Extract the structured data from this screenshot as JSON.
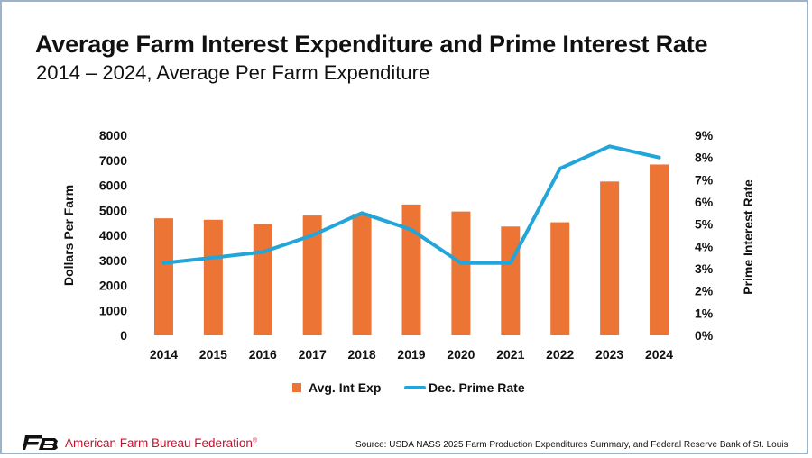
{
  "header": {
    "title": "Average Farm Interest Expenditure and Prime Interest Rate",
    "subtitle": "2014 – 2024, Average Per Farm Expenditure"
  },
  "footer": {
    "org_name": "American Farm Bureau Federation",
    "org_mark": "®",
    "logo_icon": "afbf-logo-icon",
    "source": "Source: USDA NASS 2025 Farm Production Expenditures Summary, and Federal Reserve Bank of St. Louis"
  },
  "chart_data": {
    "type": "bar",
    "categories": [
      "2014",
      "2015",
      "2016",
      "2017",
      "2018",
      "2019",
      "2020",
      "2021",
      "2022",
      "2023",
      "2024"
    ],
    "series": [
      {
        "name": "Avg. Int Exp",
        "type": "bar",
        "axis": "left",
        "color": "#ec7434",
        "values": [
          4680,
          4620,
          4450,
          4790,
          4860,
          5230,
          4950,
          4350,
          4520,
          6150,
          6830
        ]
      },
      {
        "name": "Dec. Prime Rate",
        "type": "line",
        "axis": "right",
        "color": "#22a5d8",
        "values": [
          3.25,
          3.5,
          3.75,
          4.5,
          5.5,
          4.75,
          3.25,
          3.25,
          7.5,
          8.5,
          8.0
        ]
      }
    ],
    "y_left": {
      "label": "Dollars Per Farm",
      "ylim": [
        0,
        8000
      ],
      "ticks": [
        "0",
        "1000",
        "2000",
        "3000",
        "4000",
        "5000",
        "6000",
        "7000",
        "8000"
      ]
    },
    "y_right": {
      "label": "Prime Interest Rate",
      "ylim": [
        0,
        9
      ],
      "ticks": [
        "0%",
        "1%",
        "2%",
        "3%",
        "4%",
        "5%",
        "6%",
        "7%",
        "8%",
        "9%"
      ]
    },
    "grid": true,
    "legend": "bottom"
  }
}
